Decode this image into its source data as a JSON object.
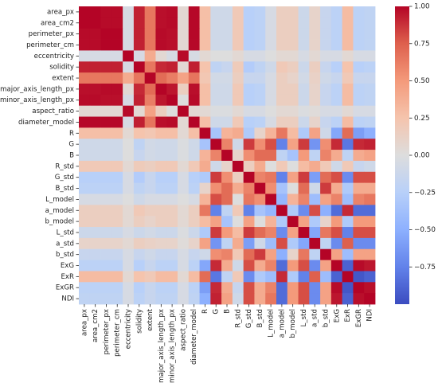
{
  "chart_data": {
    "type": "heatmap",
    "title": "",
    "xlabel": "",
    "ylabel": "",
    "labels": [
      "area_px",
      "area_cm2",
      "perimeter_px",
      "perimeter_cm",
      "eccentricity",
      "solidity",
      "extent",
      "major_axis_length_px",
      "minor_axis_length_px",
      "aspect_ratio",
      "diameter_model",
      "R",
      "G",
      "B",
      "R_std",
      "G_std",
      "B_std",
      "L_model",
      "a_model",
      "b_model",
      "L_std",
      "a_std",
      "b_std",
      "ExG",
      "ExR",
      "ExGR",
      "NDI"
    ],
    "vmin": -1,
    "vmax": 1,
    "colormap": "coolwarm",
    "colorbar_ticks": [
      1.0,
      0.75,
      0.5,
      0.25,
      0.0,
      -0.25,
      -0.5,
      -0.75
    ],
    "colorbar_tick_labels": [
      "1.00",
      "0.75",
      "0.50",
      "0.25",
      "0.00",
      "−0.25",
      "−0.50",
      "−0.75"
    ],
    "matrix": [
      [
        1.0,
        1.0,
        0.98,
        0.98,
        -0.05,
        0.92,
        0.65,
        0.97,
        0.98,
        0.05,
        0.99,
        0.28,
        -0.1,
        -0.1,
        0.2,
        -0.25,
        -0.22,
        -0.05,
        0.15,
        0.15,
        -0.12,
        0.1,
        -0.15,
        -0.22,
        0.3,
        -0.22,
        -0.2
      ],
      [
        1.0,
        1.0,
        0.98,
        0.98,
        -0.05,
        0.92,
        0.65,
        0.97,
        0.98,
        0.05,
        0.99,
        0.28,
        -0.1,
        -0.1,
        0.2,
        -0.25,
        -0.22,
        -0.05,
        0.15,
        0.15,
        -0.12,
        0.1,
        -0.15,
        -0.22,
        0.3,
        -0.22,
        -0.2
      ],
      [
        0.98,
        0.98,
        1.0,
        1.0,
        -0.05,
        0.92,
        0.65,
        0.98,
        0.97,
        0.05,
        0.99,
        0.28,
        -0.1,
        -0.1,
        0.2,
        -0.25,
        -0.22,
        -0.05,
        0.15,
        0.15,
        -0.12,
        0.1,
        -0.15,
        -0.22,
        0.3,
        -0.22,
        -0.2
      ],
      [
        0.98,
        0.98,
        1.0,
        1.0,
        -0.05,
        0.92,
        0.65,
        0.98,
        0.97,
        0.05,
        0.99,
        0.28,
        -0.1,
        -0.1,
        0.2,
        -0.25,
        -0.22,
        -0.05,
        0.15,
        0.15,
        -0.12,
        0.1,
        -0.15,
        -0.22,
        0.3,
        -0.22,
        -0.2
      ],
      [
        -0.05,
        -0.05,
        -0.05,
        -0.05,
        1.0,
        -0.05,
        0.4,
        0.05,
        -0.05,
        0.98,
        -0.05,
        0.05,
        0.0,
        0.0,
        0.05,
        -0.05,
        -0.05,
        0.0,
        0.05,
        0.05,
        -0.05,
        0.05,
        -0.05,
        -0.05,
        0.05,
        -0.05,
        -0.05
      ],
      [
        0.92,
        0.92,
        0.92,
        0.92,
        -0.05,
        1.0,
        0.65,
        0.9,
        0.92,
        0.05,
        0.93,
        0.25,
        -0.2,
        -0.15,
        0.18,
        -0.28,
        -0.2,
        -0.1,
        0.2,
        0.15,
        -0.12,
        0.15,
        -0.15,
        -0.25,
        0.25,
        -0.25,
        -0.22
      ],
      [
        0.65,
        0.65,
        0.65,
        0.65,
        0.4,
        0.65,
        1.0,
        0.7,
        0.62,
        0.45,
        0.66,
        0.22,
        -0.08,
        -0.08,
        0.15,
        -0.15,
        -0.15,
        -0.05,
        0.15,
        0.1,
        -0.08,
        0.12,
        -0.1,
        -0.15,
        0.2,
        -0.15,
        -0.15
      ],
      [
        0.97,
        0.97,
        0.98,
        0.98,
        0.05,
        0.9,
        0.7,
        1.0,
        0.95,
        0.15,
        0.97,
        0.28,
        -0.1,
        -0.1,
        0.2,
        -0.25,
        -0.22,
        -0.05,
        0.15,
        0.15,
        -0.12,
        0.1,
        -0.15,
        -0.22,
        0.3,
        -0.22,
        -0.2
      ],
      [
        0.98,
        0.98,
        0.97,
        0.97,
        -0.05,
        0.92,
        0.62,
        0.95,
        1.0,
        0.0,
        0.98,
        0.28,
        -0.1,
        -0.1,
        0.2,
        -0.25,
        -0.22,
        -0.05,
        0.15,
        0.15,
        -0.12,
        0.1,
        -0.15,
        -0.22,
        0.3,
        -0.22,
        -0.2
      ],
      [
        0.05,
        0.05,
        0.05,
        0.05,
        0.98,
        0.05,
        0.45,
        0.15,
        0.0,
        1.0,
        0.05,
        0.05,
        -0.02,
        -0.02,
        0.05,
        -0.05,
        -0.05,
        0.0,
        0.05,
        0.05,
        -0.02,
        0.02,
        -0.05,
        -0.05,
        0.05,
        -0.05,
        -0.05
      ],
      [
        0.99,
        0.99,
        0.99,
        0.99,
        -0.05,
        0.93,
        0.66,
        0.97,
        0.98,
        0.05,
        1.0,
        0.28,
        -0.1,
        -0.1,
        0.2,
        -0.25,
        -0.22,
        -0.05,
        0.15,
        0.15,
        -0.12,
        0.1,
        -0.15,
        -0.22,
        0.3,
        -0.22,
        -0.2
      ],
      [
        0.28,
        0.28,
        0.28,
        0.28,
        0.05,
        0.25,
        0.22,
        0.28,
        0.28,
        0.05,
        0.28,
        1.0,
        -0.35,
        0.35,
        0.4,
        -0.3,
        0.1,
        0.35,
        0.65,
        0.3,
        -0.3,
        0.45,
        -0.1,
        -0.55,
        0.7,
        -0.6,
        -0.5
      ],
      [
        -0.1,
        -0.1,
        -0.1,
        -0.1,
        0.0,
        -0.2,
        -0.08,
        -0.1,
        -0.1,
        -0.02,
        -0.1,
        -0.35,
        1.0,
        0.6,
        -0.1,
        0.85,
        0.55,
        0.8,
        -0.75,
        0.45,
        0.85,
        -0.65,
        0.55,
        0.9,
        -0.8,
        0.9,
        0.92
      ],
      [
        -0.1,
        -0.1,
        -0.1,
        -0.1,
        0.0,
        -0.15,
        -0.08,
        -0.1,
        -0.1,
        -0.02,
        -0.1,
        0.35,
        0.6,
        1.0,
        0.1,
        0.55,
        0.7,
        0.7,
        -0.2,
        -0.35,
        0.5,
        -0.2,
        0.6,
        0.4,
        -0.2,
        0.4,
        0.45
      ],
      [
        0.2,
        0.2,
        0.2,
        0.2,
        0.05,
        0.18,
        0.15,
        0.2,
        0.2,
        0.05,
        0.2,
        0.4,
        -0.1,
        0.1,
        1.0,
        0.15,
        0.4,
        0.0,
        0.2,
        0.0,
        0.3,
        0.4,
        0.2,
        -0.1,
        0.2,
        -0.15,
        -0.1
      ],
      [
        -0.25,
        -0.25,
        -0.25,
        -0.25,
        -0.05,
        -0.28,
        -0.15,
        -0.25,
        -0.25,
        -0.05,
        -0.25,
        -0.3,
        0.85,
        0.55,
        0.15,
        1.0,
        0.6,
        0.65,
        -0.75,
        0.45,
        0.85,
        -0.6,
        0.7,
        0.8,
        -0.7,
        0.8,
        0.8
      ],
      [
        -0.22,
        -0.22,
        -0.22,
        -0.22,
        -0.05,
        -0.2,
        -0.15,
        -0.22,
        -0.22,
        -0.05,
        -0.22,
        0.1,
        0.55,
        0.7,
        0.4,
        0.6,
        1.0,
        0.55,
        -0.35,
        0.0,
        0.7,
        -0.1,
        0.85,
        0.4,
        -0.3,
        0.4,
        0.4
      ],
      [
        -0.05,
        -0.05,
        -0.05,
        -0.05,
        0.0,
        -0.1,
        -0.05,
        -0.05,
        -0.05,
        0.0,
        -0.05,
        0.35,
        0.8,
        0.7,
        0.0,
        0.65,
        0.55,
        1.0,
        -0.45,
        0.35,
        0.6,
        -0.4,
        0.45,
        0.6,
        -0.4,
        0.6,
        0.65
      ],
      [
        0.15,
        0.15,
        0.15,
        0.15,
        0.05,
        0.2,
        0.15,
        0.15,
        0.15,
        0.05,
        0.15,
        0.65,
        -0.75,
        -0.2,
        0.2,
        -0.75,
        -0.35,
        -0.45,
        1.0,
        -0.3,
        -0.7,
        0.8,
        -0.5,
        -0.85,
        0.9,
        -0.85,
        -0.85
      ],
      [
        0.15,
        0.15,
        0.15,
        0.15,
        0.05,
        0.15,
        0.1,
        0.15,
        0.15,
        0.05,
        0.15,
        0.3,
        0.45,
        -0.35,
        0.0,
        0.45,
        0.0,
        0.35,
        -0.3,
        1.0,
        0.45,
        -0.3,
        0.1,
        0.5,
        -0.3,
        0.5,
        0.5
      ],
      [
        -0.12,
        -0.12,
        -0.12,
        -0.12,
        -0.05,
        -0.12,
        -0.08,
        -0.12,
        -0.12,
        -0.02,
        -0.12,
        -0.3,
        0.85,
        0.5,
        0.3,
        0.85,
        0.7,
        0.6,
        -0.7,
        0.45,
        1.0,
        -0.55,
        0.65,
        0.8,
        -0.75,
        0.8,
        0.8
      ],
      [
        0.1,
        0.1,
        0.1,
        0.1,
        0.05,
        0.15,
        0.12,
        0.1,
        0.1,
        0.02,
        0.1,
        0.45,
        -0.65,
        -0.2,
        0.4,
        -0.6,
        -0.1,
        -0.4,
        0.8,
        -0.3,
        -0.55,
        1.0,
        -0.2,
        -0.7,
        0.75,
        -0.7,
        -0.7
      ],
      [
        -0.15,
        -0.15,
        -0.15,
        -0.15,
        -0.05,
        -0.15,
        -0.1,
        -0.15,
        -0.15,
        -0.05,
        -0.15,
        -0.1,
        0.55,
        0.6,
        0.2,
        0.7,
        0.85,
        0.45,
        -0.5,
        0.1,
        0.65,
        -0.2,
        1.0,
        0.45,
        -0.4,
        0.45,
        0.45
      ],
      [
        -0.22,
        -0.22,
        -0.22,
        -0.22,
        -0.05,
        -0.25,
        -0.15,
        -0.22,
        -0.22,
        -0.05,
        -0.22,
        -0.55,
        0.9,
        0.4,
        -0.1,
        0.8,
        0.4,
        0.6,
        -0.85,
        0.5,
        0.8,
        -0.7,
        0.45,
        1.0,
        -0.9,
        0.98,
        0.95
      ],
      [
        0.3,
        0.3,
        0.3,
        0.3,
        0.05,
        0.25,
        0.2,
        0.3,
        0.3,
        0.05,
        0.3,
        0.7,
        -0.8,
        -0.2,
        0.2,
        -0.7,
        -0.3,
        -0.4,
        0.9,
        -0.3,
        -0.75,
        0.75,
        -0.4,
        -0.9,
        1.0,
        -0.95,
        -0.9
      ],
      [
        -0.22,
        -0.22,
        -0.22,
        -0.22,
        -0.05,
        -0.25,
        -0.15,
        -0.22,
        -0.22,
        -0.05,
        -0.22,
        -0.6,
        0.9,
        0.4,
        -0.15,
        0.8,
        0.4,
        0.6,
        -0.85,
        0.5,
        0.8,
        -0.7,
        0.45,
        0.98,
        -0.95,
        1.0,
        0.97
      ],
      [
        -0.2,
        -0.2,
        -0.2,
        -0.2,
        -0.05,
        -0.22,
        -0.15,
        -0.2,
        -0.2,
        -0.05,
        -0.2,
        -0.5,
        0.92,
        0.45,
        -0.1,
        0.8,
        0.4,
        0.65,
        -0.85,
        0.5,
        0.8,
        -0.7,
        0.45,
        0.95,
        -0.9,
        0.97,
        1.0
      ]
    ]
  }
}
